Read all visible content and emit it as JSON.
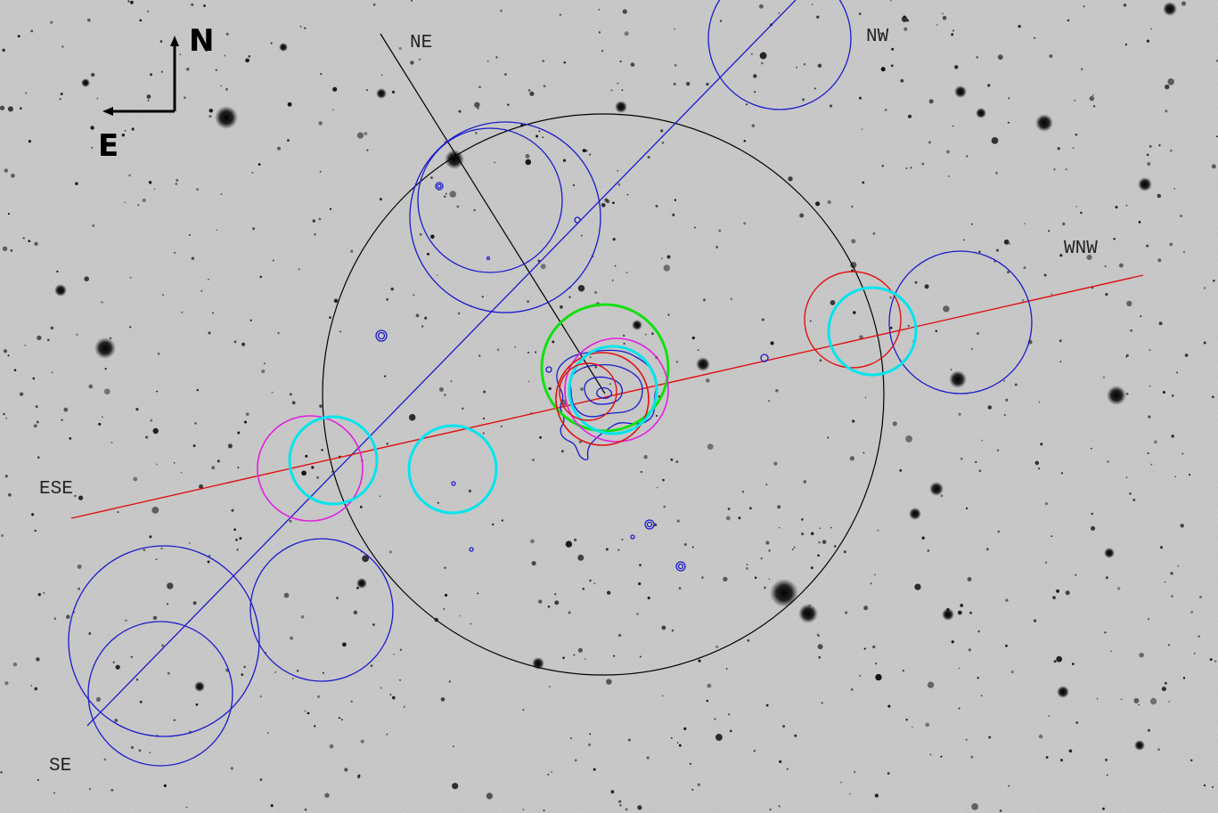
{
  "compass": {
    "north_label": "N",
    "east_label": "E"
  },
  "direction_labels": {
    "ne": "NE",
    "nw": "NW",
    "wnw": "WNW",
    "ese": "ESE",
    "se": "SE"
  },
  "colors": {
    "background": "#cfcfcf",
    "black_overlay": "#000000",
    "blue_overlay": "#1a1acc",
    "red_overlay": "#e01010",
    "cyan_overlay": "#00e5ee",
    "green_overlay": "#10e010",
    "magenta_overlay": "#e020e0",
    "stars": "#111111"
  }
}
